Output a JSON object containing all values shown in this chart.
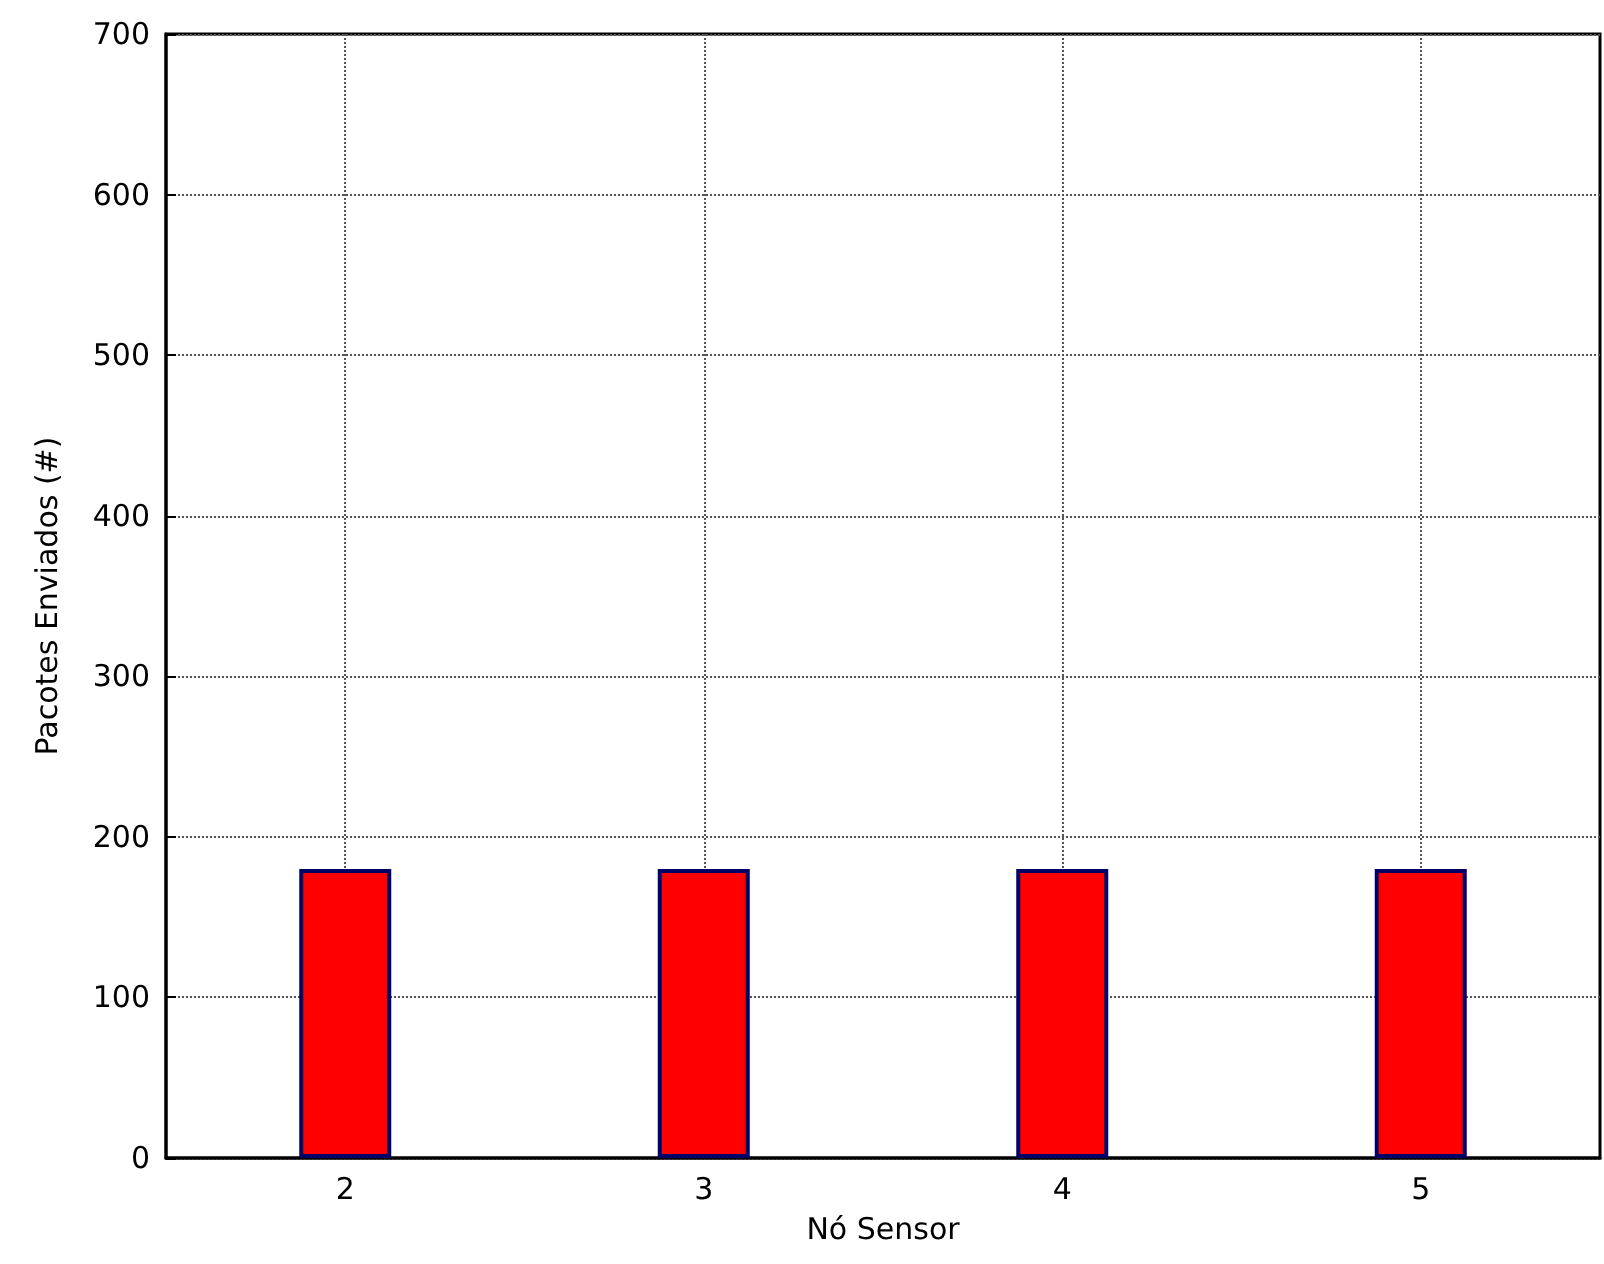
{
  "chart_data": {
    "type": "bar",
    "xlabel": "Nó Sensor",
    "ylabel": "Pacotes Enviados (#)",
    "x": [
      2,
      3,
      4,
      5
    ],
    "values": [
      180,
      180,
      180,
      180
    ],
    "color": "#ff0000",
    "xlim": [
      1.5,
      5.5
    ],
    "xticks": [
      2,
      3,
      4,
      5
    ],
    "ylim": [
      0,
      700
    ],
    "yticks": [
      0,
      100,
      200,
      300,
      400,
      500,
      600,
      700
    ],
    "grid": true
  }
}
